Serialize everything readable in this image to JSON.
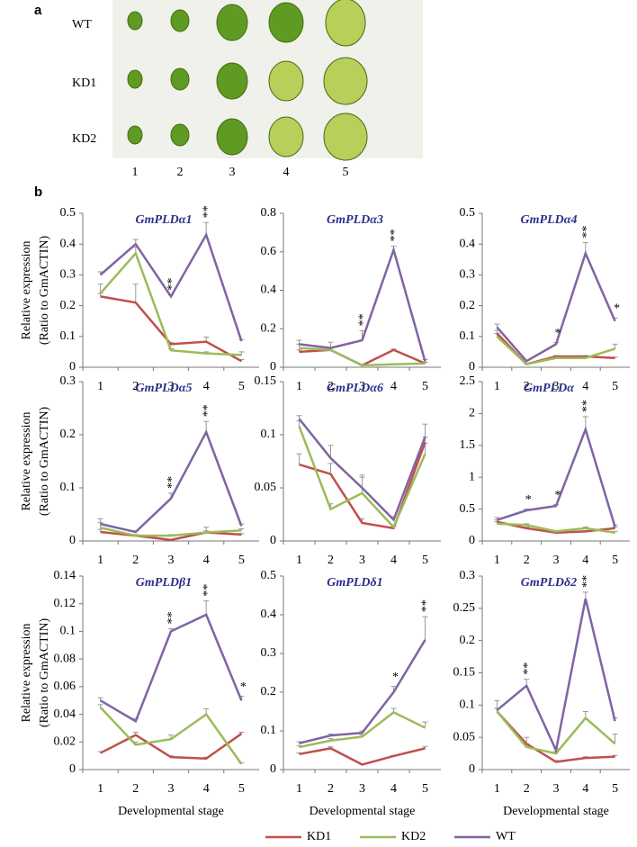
{
  "panel_a": {
    "label": "a",
    "rows": [
      "WT",
      "KD1",
      "KD2"
    ],
    "columns": [
      "1",
      "2",
      "3",
      "4",
      "5"
    ]
  },
  "panel_b_label": "b",
  "chart_data": [
    {
      "type": "line",
      "title": "GmPLDα1",
      "categories": [
        "1",
        "2",
        "3",
        "4",
        "5"
      ],
      "ylim": [
        0,
        0.5
      ],
      "yticks": [
        0,
        0.1,
        0.2,
        0.3,
        0.4,
        0.5
      ],
      "ylabel": [
        "Relative expression",
        "(Ratio to GmACTIN)"
      ],
      "series": [
        {
          "name": "KD1",
          "color": "#c0504d",
          "values": [
            0.23,
            0.21,
            0.075,
            0.083,
            0.02
          ],
          "errors": [
            0.01,
            0.06,
            0.005,
            0.015,
            0.005
          ]
        },
        {
          "name": "KD2",
          "color": "#9bbb59",
          "values": [
            0.24,
            0.37,
            0.055,
            0.045,
            0.04
          ],
          "errors": [
            0.03,
            0.02,
            0.005,
            0.005,
            0.01
          ]
        },
        {
          "name": "WT",
          "color": "#8064a2",
          "values": [
            0.3,
            0.4,
            0.23,
            0.43,
            0.085
          ],
          "errors": [
            0.01,
            0.015,
            0.005,
            0.04,
            0.005
          ]
        }
      ],
      "annotations": [
        {
          "category": "3",
          "text": "**"
        },
        {
          "category": "4",
          "text": "**"
        }
      ]
    },
    {
      "type": "line",
      "title": "GmPLDα3",
      "categories": [
        "1",
        "2",
        "3",
        "4",
        "5"
      ],
      "ylim": [
        0,
        0.8
      ],
      "yticks": [
        0,
        0.2,
        0.4,
        0.6,
        0.8
      ],
      "series": [
        {
          "name": "KD1",
          "color": "#c0504d",
          "values": [
            0.08,
            0.09,
            0.01,
            0.09,
            0.02
          ],
          "errors": [
            0.01,
            0.01,
            0.002,
            0.005,
            0.005
          ]
        },
        {
          "name": "KD2",
          "color": "#9bbb59",
          "values": [
            0.1,
            0.09,
            0.01,
            0.015,
            0.02
          ],
          "errors": [
            0.02,
            0.01,
            0.002,
            0.003,
            0.005
          ]
        },
        {
          "name": "WT",
          "color": "#8064a2",
          "values": [
            0.12,
            0.1,
            0.14,
            0.61,
            0.03
          ],
          "errors": [
            0.02,
            0.03,
            0.05,
            0.02,
            0.01
          ]
        }
      ],
      "annotations": [
        {
          "category": "3",
          "text": "**"
        },
        {
          "category": "4",
          "text": "**"
        }
      ]
    },
    {
      "type": "line",
      "title": "GmPLDα4",
      "categories": [
        "1",
        "2",
        "3",
        "4",
        "5"
      ],
      "ylim": [
        0,
        0.5
      ],
      "yticks": [
        0,
        0.1,
        0.2,
        0.3,
        0.4,
        0.5
      ],
      "series": [
        {
          "name": "KD1",
          "color": "#c0504d",
          "values": [
            0.11,
            0.01,
            0.035,
            0.035,
            0.03
          ],
          "errors": [
            0.01,
            0.002,
            0.003,
            0.003,
            0.003
          ]
        },
        {
          "name": "KD2",
          "color": "#9bbb59",
          "values": [
            0.1,
            0.01,
            0.03,
            0.03,
            0.06
          ],
          "errors": [
            0.01,
            0.002,
            0.003,
            0.005,
            0.015
          ]
        },
        {
          "name": "WT",
          "color": "#8064a2",
          "values": [
            0.13,
            0.02,
            0.075,
            0.37,
            0.15
          ],
          "errors": [
            0.01,
            0.003,
            0.005,
            0.035,
            0.01
          ]
        }
      ],
      "annotations": [
        {
          "category": "3",
          "text": "*"
        },
        {
          "category": "4",
          "text": "**"
        },
        {
          "category": "5",
          "text": "*"
        }
      ]
    },
    {
      "type": "line",
      "title": "GmPLDα5",
      "categories": [
        "1",
        "2",
        "3",
        "4",
        "5"
      ],
      "ylim": [
        0,
        0.3
      ],
      "yticks": [
        0,
        0.1,
        0.2,
        0.3
      ],
      "ylabel": [
        "Relative expression",
        "(Ratio to GmACTIN)"
      ],
      "series": [
        {
          "name": "KD1",
          "color": "#c0504d",
          "values": [
            0.017,
            0.01,
            0.002,
            0.016,
            0.012
          ],
          "errors": [
            0.005,
            0.002,
            0.001,
            0.003,
            0.002
          ]
        },
        {
          "name": "KD2",
          "color": "#9bbb59",
          "values": [
            0.025,
            0.01,
            0.01,
            0.016,
            0.02
          ],
          "errors": [
            0.01,
            0.002,
            0.002,
            0.01,
            0.003
          ]
        },
        {
          "name": "WT",
          "color": "#8064a2",
          "values": [
            0.032,
            0.017,
            0.08,
            0.205,
            0.028
          ],
          "errors": [
            0.01,
            0.002,
            0.01,
            0.02,
            0.004
          ]
        }
      ],
      "annotations": [
        {
          "category": "3",
          "text": "**"
        },
        {
          "category": "4",
          "text": "**"
        }
      ]
    },
    {
      "type": "line",
      "title": "GmPLDα6",
      "categories": [
        "1",
        "2",
        "3",
        "4",
        "5"
      ],
      "ylim": [
        0,
        0.15
      ],
      "yticks": [
        0,
        0.05,
        0.1,
        0.15
      ],
      "series": [
        {
          "name": "KD1",
          "color": "#c0504d",
          "values": [
            0.072,
            0.063,
            0.017,
            0.012,
            0.093
          ],
          "errors": [
            0.01,
            0.01,
            0.004,
            0.002,
            0.005
          ]
        },
        {
          "name": "KD2",
          "color": "#9bbb59",
          "values": [
            0.108,
            0.03,
            0.045,
            0.013,
            0.082
          ],
          "errors": [
            0.005,
            0.005,
            0.015,
            0.002,
            0.01
          ]
        },
        {
          "name": "WT",
          "color": "#8064a2",
          "values": [
            0.115,
            0.078,
            0.05,
            0.02,
            0.098
          ],
          "errors": [
            0.003,
            0.012,
            0.012,
            0.003,
            0.012
          ]
        }
      ],
      "annotations": []
    },
    {
      "type": "line",
      "title": "GmPLDα",
      "categories": [
        "1",
        "2",
        "3",
        "4",
        "5"
      ],
      "ylim": [
        0,
        2.5
      ],
      "yticks": [
        0,
        0.5,
        1,
        1.5,
        2,
        2.5
      ],
      "series": [
        {
          "name": "KD1",
          "color": "#c0504d",
          "values": [
            0.3,
            0.2,
            0.13,
            0.15,
            0.2
          ],
          "errors": [
            0.03,
            0.02,
            0.01,
            0.01,
            0.02
          ]
        },
        {
          "name": "KD2",
          "color": "#9bbb59",
          "values": [
            0.27,
            0.25,
            0.15,
            0.2,
            0.13
          ],
          "errors": [
            0.03,
            0.02,
            0.01,
            0.02,
            0.02
          ]
        },
        {
          "name": "WT",
          "color": "#8064a2",
          "values": [
            0.33,
            0.48,
            0.55,
            1.75,
            0.22
          ],
          "errors": [
            0.04,
            0.02,
            0.02,
            0.2,
            0.03
          ]
        }
      ],
      "annotations": [
        {
          "category": "2",
          "text": "*"
        },
        {
          "category": "3",
          "text": "*"
        },
        {
          "category": "4",
          "text": "**"
        }
      ]
    },
    {
      "type": "line",
      "title": "GmPLDβ1",
      "categories": [
        "1",
        "2",
        "3",
        "4",
        "5"
      ],
      "ylim": [
        0,
        0.14
      ],
      "yticks": [
        0,
        0.02,
        0.04,
        0.06,
        0.08,
        0.1,
        0.12,
        0.14
      ],
      "ylabel": [
        "Relative expression",
        "(Ratio to GmACTIN)"
      ],
      "xlabel": "Developmental stage",
      "series": [
        {
          "name": "KD1",
          "color": "#c0504d",
          "values": [
            0.012,
            0.025,
            0.009,
            0.008,
            0.026
          ],
          "errors": [
            0.001,
            0.002,
            0.001,
            0.001,
            0.001
          ]
        },
        {
          "name": "KD2",
          "color": "#9bbb59",
          "values": [
            0.045,
            0.018,
            0.022,
            0.04,
            0.004
          ],
          "errors": [
            0.002,
            0.002,
            0.003,
            0.004,
            0.001
          ]
        },
        {
          "name": "WT",
          "color": "#8064a2",
          "values": [
            0.05,
            0.035,
            0.1,
            0.112,
            0.05
          ],
          "errors": [
            0.002,
            0.002,
            0.002,
            0.01,
            0.003
          ]
        }
      ],
      "annotations": [
        {
          "category": "3",
          "text": "**"
        },
        {
          "category": "4",
          "text": "**"
        },
        {
          "category": "5",
          "text": "*"
        }
      ]
    },
    {
      "type": "line",
      "title": "GmPLDδ1",
      "categories": [
        "1",
        "2",
        "3",
        "4",
        "5"
      ],
      "ylim": [
        0,
        0.5
      ],
      "yticks": [
        0,
        0.1,
        0.2,
        0.3,
        0.4,
        0.5
      ],
      "xlabel": "Developmental stage",
      "series": [
        {
          "name": "KD1",
          "color": "#c0504d",
          "values": [
            0.04,
            0.055,
            0.013,
            0.035,
            0.055
          ],
          "errors": [
            0.003,
            0.004,
            0.002,
            0.002,
            0.005
          ]
        },
        {
          "name": "KD2",
          "color": "#9bbb59",
          "values": [
            0.058,
            0.075,
            0.085,
            0.148,
            0.108
          ],
          "errors": [
            0.004,
            0.005,
            0.005,
            0.01,
            0.015
          ]
        },
        {
          "name": "WT",
          "color": "#8064a2",
          "values": [
            0.068,
            0.088,
            0.095,
            0.2,
            0.335
          ],
          "errors": [
            0.004,
            0.004,
            0.005,
            0.015,
            0.06
          ]
        }
      ],
      "annotations": [
        {
          "category": "4",
          "text": "*"
        },
        {
          "category": "5",
          "text": "**"
        }
      ]
    },
    {
      "type": "line",
      "title": "GmPLDδ2",
      "categories": [
        "1",
        "2",
        "3",
        "4",
        "5"
      ],
      "ylim": [
        0,
        0.3
      ],
      "yticks": [
        0,
        0.05,
        0.1,
        0.15,
        0.2,
        0.25,
        0.3
      ],
      "xlabel": "Developmental stage",
      "series": [
        {
          "name": "KD1",
          "color": "#c0504d",
          "values": [
            0.09,
            0.04,
            0.012,
            0.018,
            0.02
          ],
          "errors": [
            0.005,
            0.01,
            0.002,
            0.002,
            0.002
          ]
        },
        {
          "name": "KD2",
          "color": "#9bbb59",
          "values": [
            0.09,
            0.035,
            0.025,
            0.08,
            0.04
          ],
          "errors": [
            0.005,
            0.005,
            0.003,
            0.01,
            0.015
          ]
        },
        {
          "name": "WT",
          "color": "#8064a2",
          "values": [
            0.092,
            0.13,
            0.03,
            0.265,
            0.075
          ],
          "errors": [
            0.015,
            0.01,
            0.003,
            0.01,
            0.005
          ]
        }
      ],
      "annotations": [
        {
          "category": "2",
          "text": "**"
        },
        {
          "category": "4",
          "text": "**"
        }
      ]
    }
  ]
}
